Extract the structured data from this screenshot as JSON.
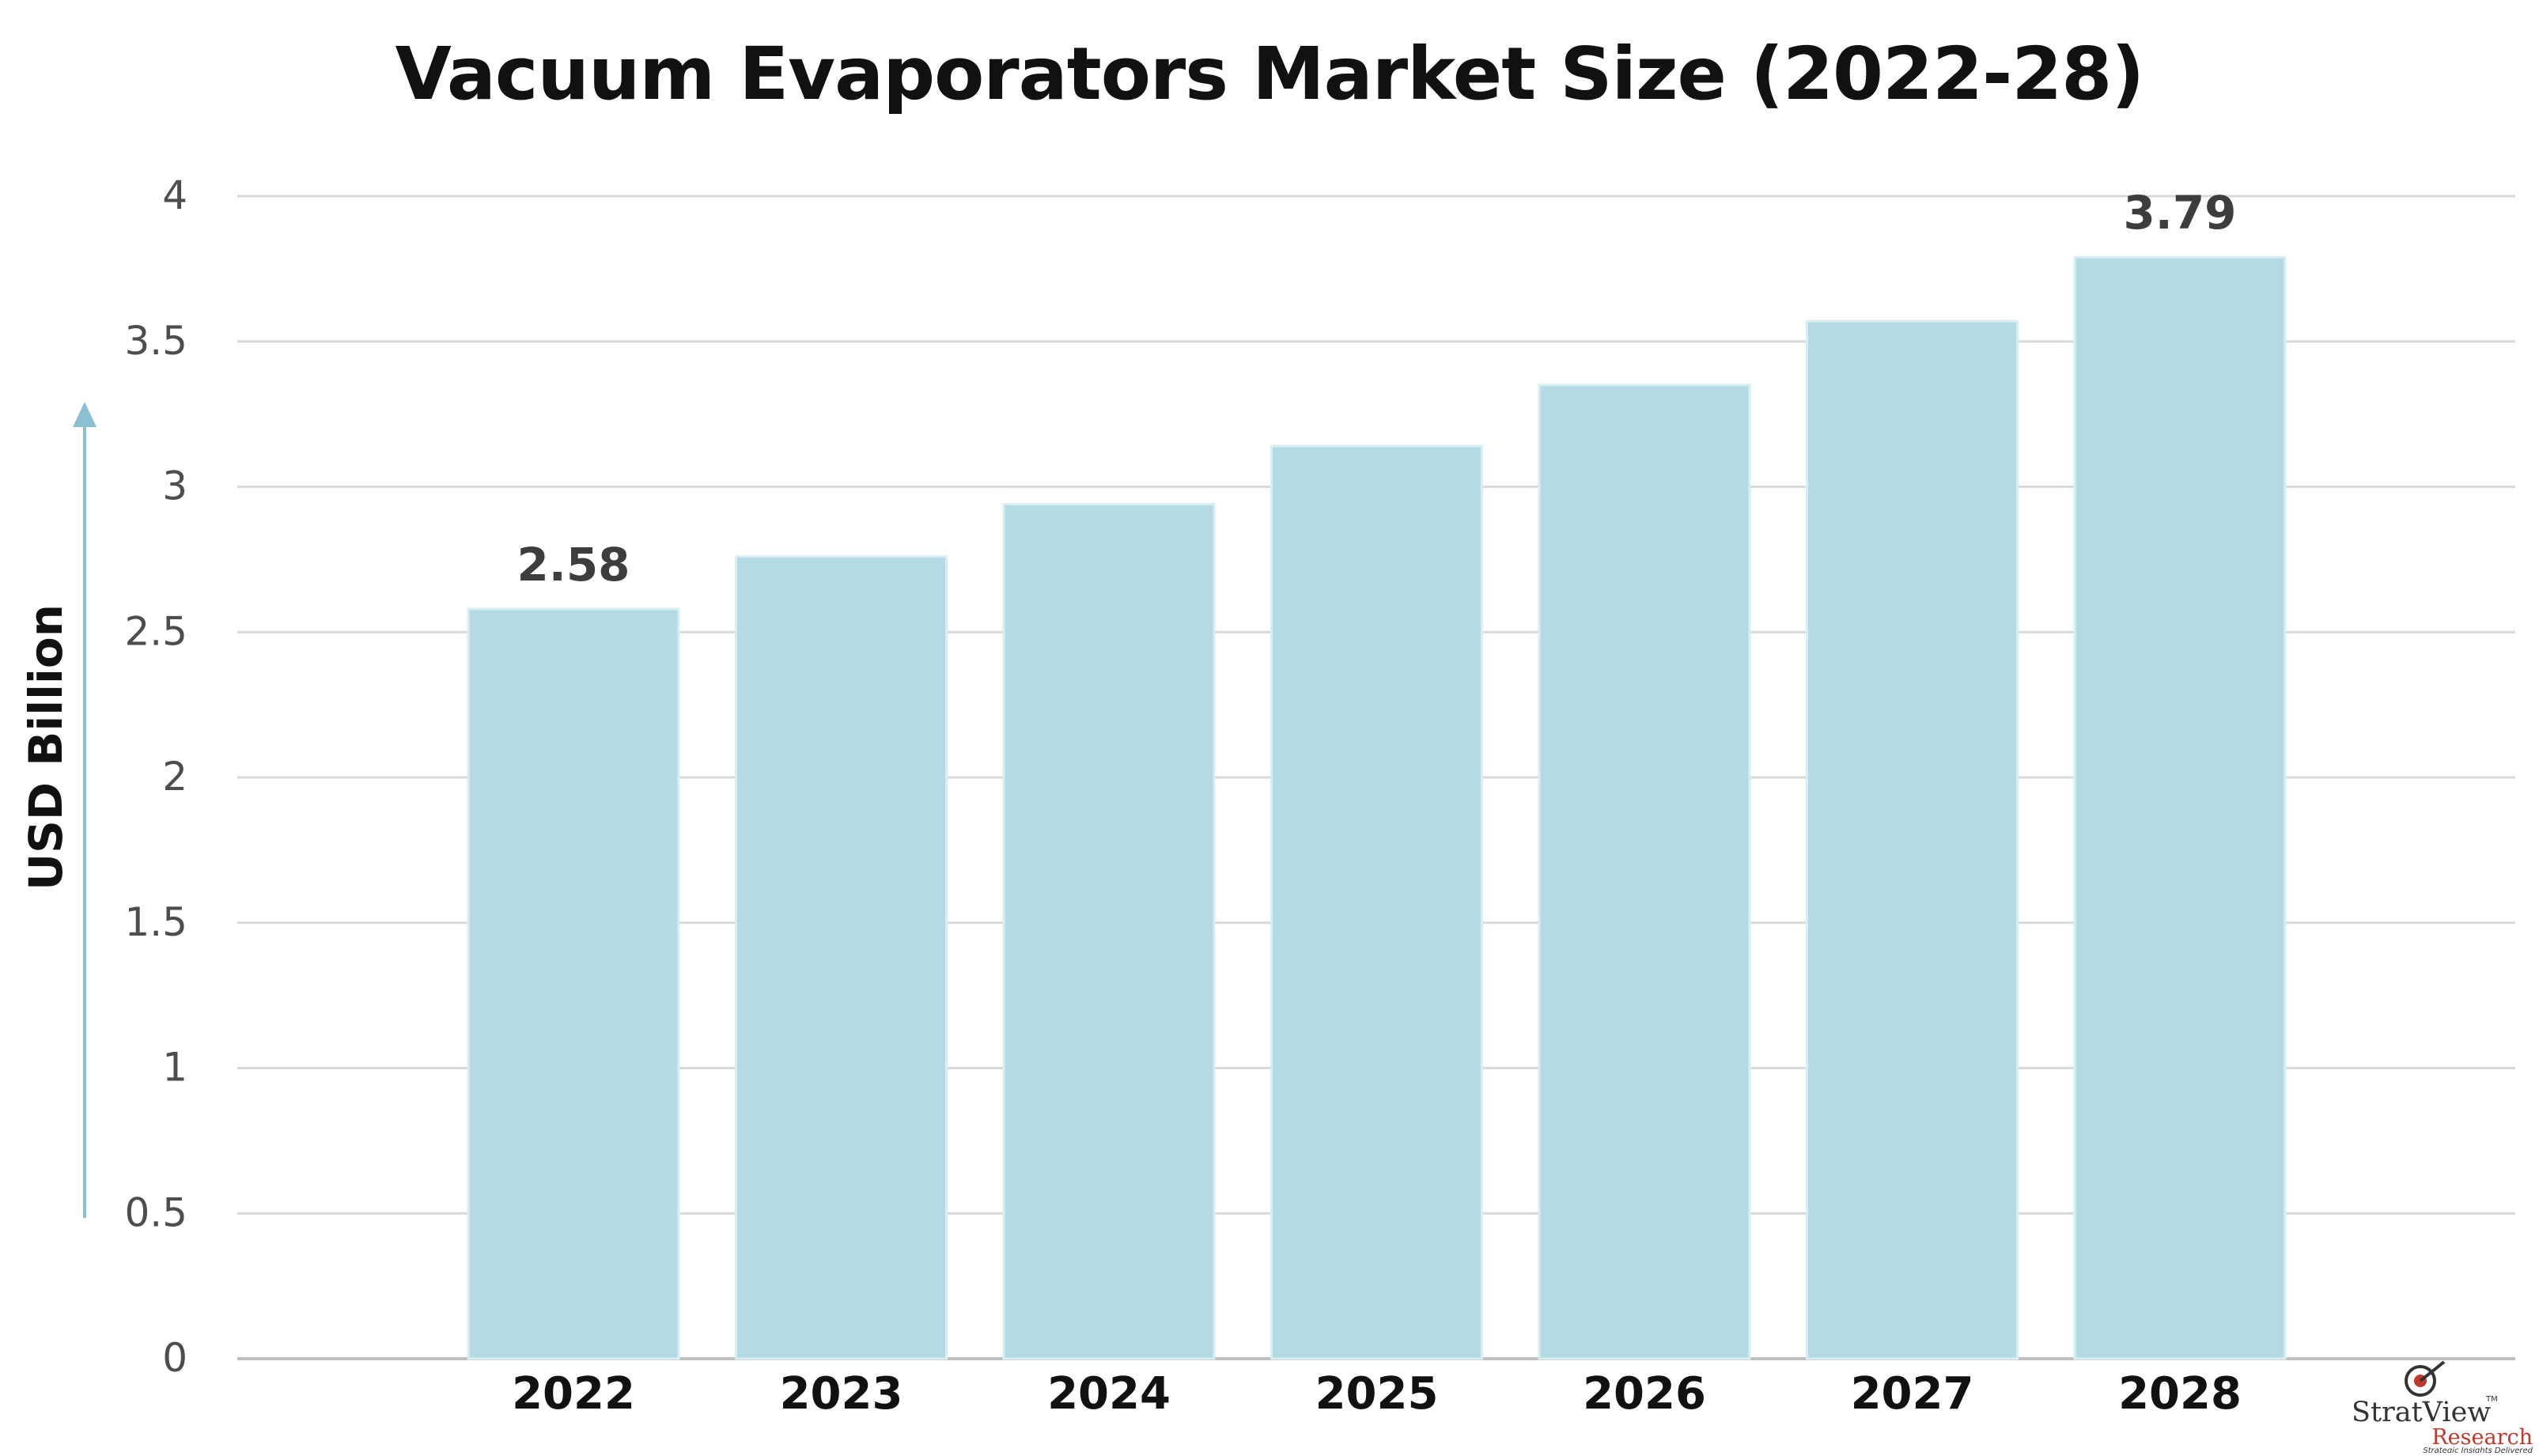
{
  "chart_data": {
    "type": "bar",
    "title": "Vacuum Evaporators Market Size (2022-28)",
    "ylabel": "USD Billion",
    "xlabel": "",
    "categories": [
      "2022",
      "2023",
      "2024",
      "2025",
      "2026",
      "2027",
      "2028"
    ],
    "values": [
      2.58,
      2.76,
      2.94,
      3.14,
      3.35,
      3.57,
      3.79
    ],
    "data_labels": [
      {
        "category": "2022",
        "text": "2.58"
      },
      {
        "category": "2028",
        "text": "3.79"
      }
    ],
    "ylim": [
      0,
      4
    ],
    "yticks": [
      "0",
      "0.5",
      "1",
      "1.5",
      "2",
      "2.5",
      "3",
      "3.5",
      "4"
    ],
    "grid": true,
    "legend": "none",
    "colors": {
      "bar": "#b4dbe3",
      "bar_edge": "#d9eef2",
      "grid": "#d9d9d9",
      "tick_text": "#4d4d4d",
      "category_text": "#111111",
      "label_text": "#3d3d3d",
      "arrow": "#8dbfd2"
    }
  },
  "logo": {
    "name_part1": "Strat",
    "name_part2": "View",
    "tm": "TM",
    "name_line2": "Research",
    "tagline": "Strategic Insights Delivered",
    "colors": {
      "primary": "#333333",
      "accent": "#c0392b"
    }
  }
}
